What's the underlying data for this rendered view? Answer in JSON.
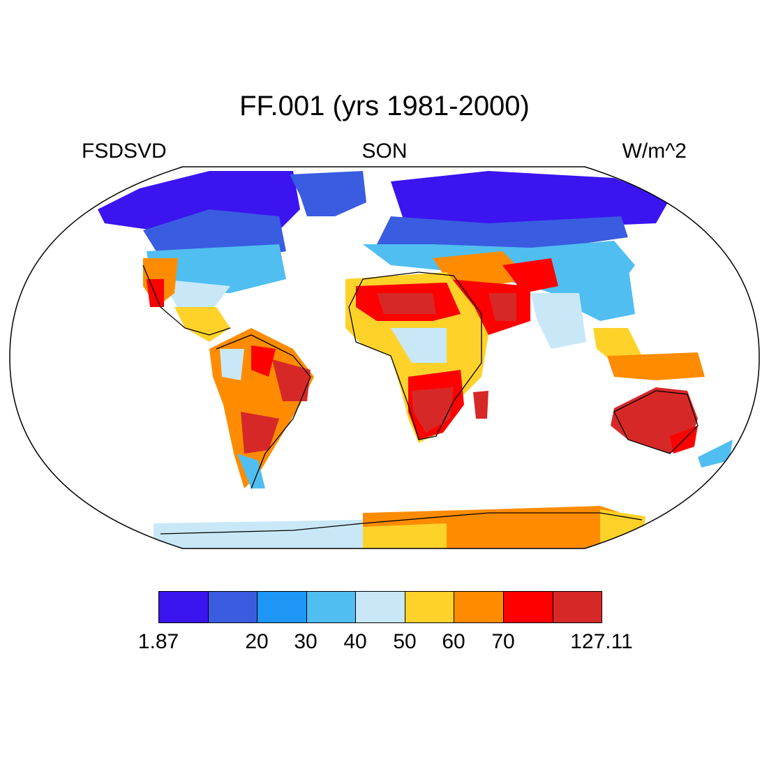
{
  "title": "FF.001 (yrs 1981-2000)",
  "left_label": "FSDSVD",
  "center_label": "SON",
  "right_label": "W/m^2",
  "colorbar": {
    "colors": [
      "#3b14f0",
      "#3a5ce0",
      "#1e96f5",
      "#50bef0",
      "#c8e8f8",
      "#ffd22a",
      "#ff8c00",
      "#ff0000",
      "#d72828"
    ],
    "labels": [
      "1.87",
      "20",
      "30",
      "40",
      "50",
      "60",
      "70",
      "127.11"
    ]
  }
}
